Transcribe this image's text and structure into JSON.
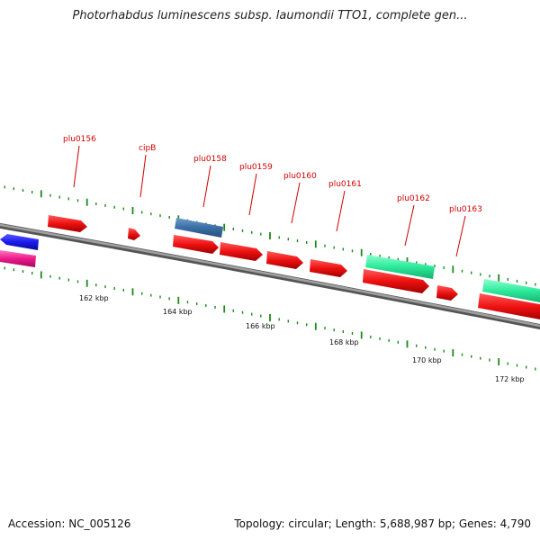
{
  "title": "Photorhabdus luminescens subsp. laumondii TTO1, complete gen...",
  "footer": {
    "accession": "Accession: NC_005126",
    "stats": "Topology: circular; Length: 5,688,987 bp; Genes: 4,790"
  },
  "colors": {
    "backbone": "#8a8a8a",
    "cds": "#ee1111",
    "trna": "#3a6ea5",
    "rrna": "#2bea9a",
    "forward_misc": "#1a1aee",
    "reverse_misc": "#ee1a8a",
    "ticks": "#1a8a1a",
    "gene_label": "#d00000"
  },
  "gene_labels": [
    "plu0156",
    "cipB",
    "plu0158",
    "plu0159",
    "plu0160",
    "plu0161",
    "plu0162",
    "plu0163"
  ],
  "kbp_labels": [
    "162 kbp",
    "164 kbp",
    "166 kbp",
    "168 kbp",
    "170 kbp",
    "172 kbp"
  ]
}
